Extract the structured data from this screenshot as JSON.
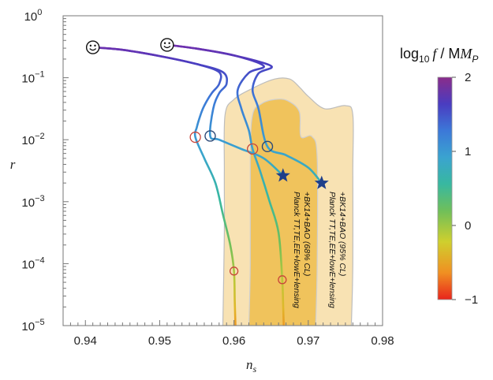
{
  "chart_data": {
    "type": "line",
    "xlabel": "n_s",
    "ylabel": "r",
    "xlim": [
      0.937,
      0.98
    ],
    "ylim_log10": [
      -5,
      0
    ],
    "x_ticks": [
      {
        "value": 0.94,
        "label": "0.94"
      },
      {
        "value": 0.95,
        "label": "0.95"
      },
      {
        "value": 0.96,
        "label": "0.96"
      },
      {
        "value": 0.97,
        "label": "0.97"
      },
      {
        "value": 0.98,
        "label": "0.98"
      }
    ],
    "y_ticks": [
      {
        "exp": 0,
        "base": "10",
        "sup": "0"
      },
      {
        "exp": -1,
        "base": "10",
        "sup": "−1"
      },
      {
        "exp": -2,
        "base": "10",
        "sup": "−2"
      },
      {
        "exp": -3,
        "base": "10",
        "sup": "−3"
      },
      {
        "exp": -4,
        "base": "10",
        "sup": "−4"
      },
      {
        "exp": -5,
        "base": "10",
        "sup": "−5"
      }
    ],
    "regions": [
      {
        "level": "95% CL",
        "color": "#f8e2b3",
        "stroke": "#bdbdbd",
        "points": [
          [
            0.9585,
            -5
          ],
          [
            0.9587,
            -3.5
          ],
          [
            0.9587,
            -2.5
          ],
          [
            0.9588,
            -1.6
          ],
          [
            0.96,
            -1.35
          ],
          [
            0.9625,
            -1.17
          ],
          [
            0.9655,
            -1.02
          ],
          [
            0.9675,
            -1.02
          ],
          [
            0.9688,
            -1.15
          ],
          [
            0.97,
            -1.3
          ],
          [
            0.9722,
            -1.5
          ],
          [
            0.975,
            -1.45
          ],
          [
            0.976,
            -1.6
          ],
          [
            0.976,
            -2.5
          ],
          [
            0.976,
            -4
          ],
          [
            0.9758,
            -5
          ]
        ]
      },
      {
        "level": "68% CL",
        "color": "#f0c35c",
        "stroke": "#cfcfcf",
        "points": [
          [
            0.962,
            -5
          ],
          [
            0.9622,
            -4
          ],
          [
            0.9622,
            -2.3
          ],
          [
            0.9625,
            -1.6
          ],
          [
            0.9637,
            -1.42
          ],
          [
            0.9655,
            -1.35
          ],
          [
            0.9672,
            -1.37
          ],
          [
            0.9688,
            -1.55
          ],
          [
            0.969,
            -1.95
          ],
          [
            0.9705,
            -1.95
          ],
          [
            0.9712,
            -2.3
          ],
          [
            0.9712,
            -4
          ],
          [
            0.971,
            -5
          ]
        ]
      }
    ],
    "series": [
      {
        "points": [
          [
            0.941,
            -0.51
          ],
          [
            0.945,
            -0.55
          ],
          [
            0.95,
            -0.65
          ],
          [
            0.955,
            -0.78
          ],
          [
            0.958,
            -0.91
          ],
          [
            0.958,
            -1.1
          ],
          [
            0.957,
            -1.25
          ],
          [
            0.956,
            -1.45
          ],
          [
            0.9555,
            -1.6
          ],
          [
            0.955,
            -1.8
          ],
          [
            0.9548,
            -1.96
          ],
          [
            0.956,
            -2.3
          ],
          [
            0.9575,
            -2.7
          ],
          [
            0.9585,
            -3.2
          ],
          [
            0.9595,
            -3.7
          ],
          [
            0.96,
            -4.12
          ],
          [
            0.9601,
            -4.6
          ],
          [
            0.9602,
            -5.0
          ]
        ]
      },
      {
        "points": [
          [
            0.941,
            -0.51
          ],
          [
            0.945,
            -0.55
          ],
          [
            0.95,
            -0.65
          ],
          [
            0.955,
            -0.78
          ],
          [
            0.9585,
            -0.91
          ],
          [
            0.959,
            -1.1
          ],
          [
            0.958,
            -1.25
          ],
          [
            0.9572,
            -1.5
          ],
          [
            0.9568,
            -1.94
          ],
          [
            0.958,
            -2.0
          ],
          [
            0.961,
            -2.15
          ],
          [
            0.964,
            -2.3
          ],
          [
            0.9666,
            -2.58
          ]
        ]
      },
      {
        "points": [
          [
            0.951,
            -0.47
          ],
          [
            0.955,
            -0.53
          ],
          [
            0.96,
            -0.64
          ],
          [
            0.964,
            -0.81
          ],
          [
            0.962,
            -0.92
          ],
          [
            0.9605,
            -1.2
          ],
          [
            0.961,
            -1.5
          ],
          [
            0.962,
            -1.85
          ],
          [
            0.9625,
            -2.15
          ],
          [
            0.9635,
            -2.5
          ],
          [
            0.9648,
            -3.0
          ],
          [
            0.966,
            -3.5
          ],
          [
            0.9665,
            -4.26
          ],
          [
            0.9666,
            -4.6
          ],
          [
            0.9667,
            -5.0
          ]
        ]
      },
      {
        "points": [
          [
            0.951,
            -0.47
          ],
          [
            0.955,
            -0.53
          ],
          [
            0.96,
            -0.64
          ],
          [
            0.965,
            -0.81
          ],
          [
            0.9633,
            -0.93
          ],
          [
            0.9625,
            -1.2
          ],
          [
            0.9633,
            -1.5
          ],
          [
            0.9645,
            -2.11
          ],
          [
            0.967,
            -2.25
          ],
          [
            0.97,
            -2.45
          ],
          [
            0.9718,
            -2.7
          ]
        ]
      }
    ],
    "markers": {
      "smiley": [
        [
          0.941,
          -0.51
        ],
        [
          0.951,
          -0.47
        ]
      ],
      "blue_circle": [
        [
          0.9568,
          -1.94
        ],
        [
          0.9645,
          -2.11
        ]
      ],
      "red_circle": [
        [
          0.9548,
          -1.96
        ],
        [
          0.9625,
          -2.15
        ],
        [
          0.96,
          -4.12
        ],
        [
          0.9665,
          -4.26
        ]
      ],
      "star": [
        [
          0.9666,
          -2.58
        ],
        [
          0.9718,
          -2.7
        ]
      ]
    },
    "annotations": [
      {
        "lines": [
          "Planck TT,TE,EE+lowE+lensing",
          "+BK14+BAO (95% CL)"
        ]
      },
      {
        "lines": [
          "Planck TT,TE,EE+lowE+lensing",
          "+BK14+BAO (68% CL)"
        ]
      }
    ],
    "colorbar": {
      "title_prefix": "log",
      "title_sub": "10",
      "title_f": "f",
      "title_rest": " / M",
      "title_sub2": "P",
      "range": [
        -1,
        2
      ],
      "ticks": [
        {
          "value": 2,
          "label": "2"
        },
        {
          "value": 1,
          "label": "1"
        },
        {
          "value": 0,
          "label": "0"
        },
        {
          "value": -1,
          "label": "−1"
        }
      ],
      "colors": [
        "#e8241c",
        "#f08f22",
        "#cfcf2e",
        "#6fbf5a",
        "#38b8a0",
        "#3aa3d0",
        "#3c78d8",
        "#4a3cc0",
        "#7c2aa6",
        "#8a2c8a"
      ]
    }
  }
}
